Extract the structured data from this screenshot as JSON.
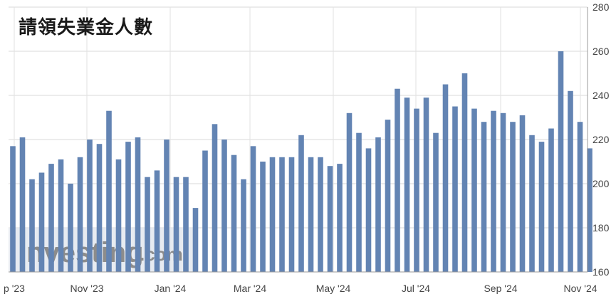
{
  "chart_data": {
    "type": "bar",
    "title": "請領失業金人數",
    "ylim": [
      160,
      280
    ],
    "yticks": [
      160,
      180,
      200,
      220,
      240,
      260,
      280
    ],
    "xtick_labels": [
      "p '23",
      "Nov '23",
      "Jan '24",
      "Mar '24",
      "May '24",
      "Jul '24",
      "Sep '24",
      "Nov '24"
    ],
    "grid": true,
    "bar_color": "#6384b3",
    "values": [
      217,
      221,
      202,
      205,
      209,
      211,
      200,
      212,
      220,
      218,
      233,
      211,
      219,
      221,
      203,
      206,
      220,
      203,
      203,
      189,
      215,
      227,
      220,
      213,
      202,
      217,
      210,
      212,
      212,
      212,
      222,
      212,
      212,
      208,
      209,
      232,
      223,
      216,
      221,
      229,
      243,
      239,
      234,
      239,
      223,
      245,
      235,
      250,
      234,
      228,
      233,
      232,
      228,
      231,
      222,
      219,
      225,
      260,
      242,
      228,
      216
    ]
  },
  "watermark": {
    "brand": "Investing",
    "suffix": ".com"
  }
}
